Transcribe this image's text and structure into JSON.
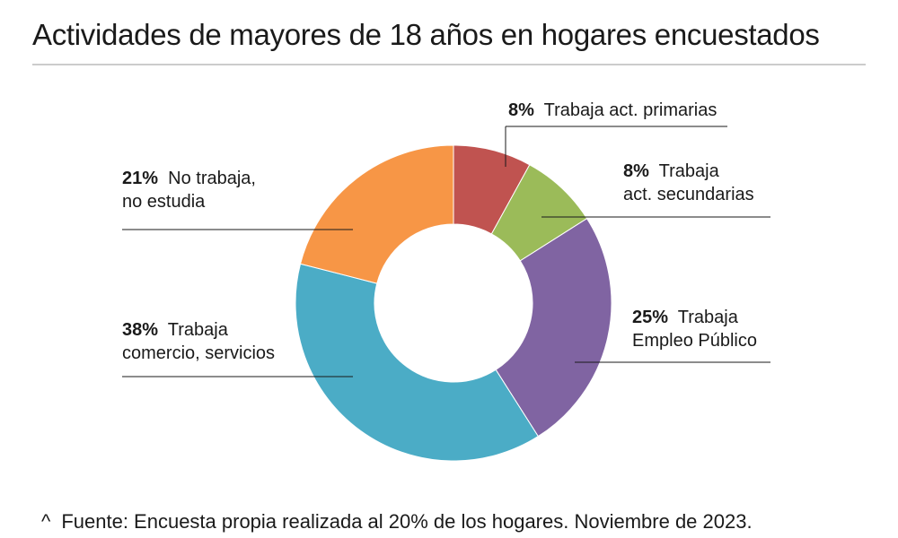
{
  "title": "Actividades de mayores de 18 años en hogares encuestados",
  "chart_data": {
    "type": "pie",
    "donut": true,
    "slices": [
      {
        "pct_label": "8%",
        "label_lines": [
          "Trabaja act. primarias"
        ],
        "value": 8,
        "color": "#c05350"
      },
      {
        "pct_label": "8%",
        "label_lines": [
          "Trabaja",
          "act. secundarias"
        ],
        "value": 8,
        "color": "#9bbb59"
      },
      {
        "pct_label": "25%",
        "label_lines": [
          "Trabaja",
          "Empleo Público"
        ],
        "value": 25,
        "color": "#8064a2"
      },
      {
        "pct_label": "38%",
        "label_lines": [
          "Trabaja",
          "comercio, servicios"
        ],
        "value": 38,
        "color": "#4bacc6"
      },
      {
        "pct_label": "21%",
        "label_lines": [
          "No trabaja,",
          "no estudia"
        ],
        "value": 21,
        "color": "#f79646"
      }
    ]
  },
  "footnote": {
    "marker": "^",
    "text": "Fuente: Encuesta propia realizada al 20% de los hogares. Noviembre de 2023."
  }
}
